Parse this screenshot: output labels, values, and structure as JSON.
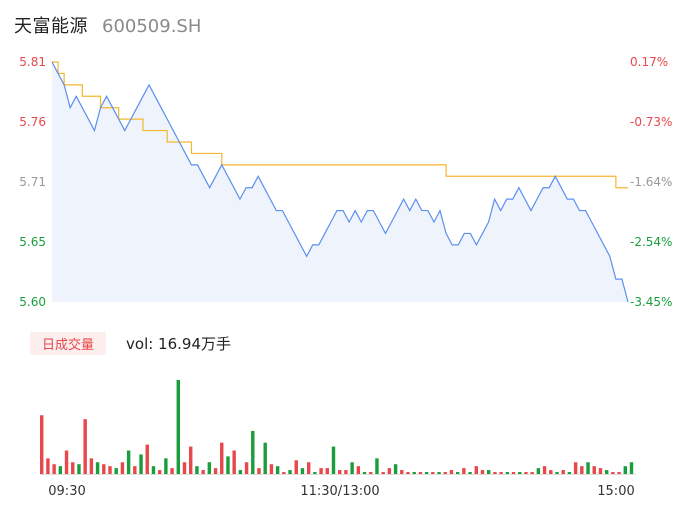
{
  "header": {
    "stock_name": "天富能源",
    "stock_code": "600509.SH"
  },
  "volume_panel": {
    "tab_label": "日成交量",
    "vol_text": "vol: 16.94万手"
  },
  "colors": {
    "price_line": "#5b8ff0",
    "avg_line": "#f5b72e",
    "up": "#e8484b",
    "down": "#1a9e3d",
    "area_fill": "#eef3fc"
  },
  "chart_data": [
    {
      "type": "line",
      "ylim": [
        5.6,
        5.81
      ],
      "y_ticks_left": [
        "5.81",
        "5.76",
        "5.71",
        "5.65",
        "5.60"
      ],
      "y_ticks_right": [
        "0.17%",
        "-0.73%",
        "-1.64%",
        "-2.54%",
        "-3.45%"
      ],
      "x_ticks": [
        "09:30",
        "11:30/13:00",
        "15:00"
      ],
      "series": [
        {
          "values": [
            5.81,
            5.8,
            5.79,
            5.77,
            5.78,
            5.77,
            5.76,
            5.75,
            5.77,
            5.78,
            5.77,
            5.76,
            5.75,
            5.76,
            5.77,
            5.78,
            5.79,
            5.78,
            5.77,
            5.76,
            5.75,
            5.74,
            5.73,
            5.72,
            5.72,
            5.71,
            5.7,
            5.71,
            5.72,
            5.71,
            5.7,
            5.69,
            5.7,
            5.7,
            5.71,
            5.7,
            5.69,
            5.68,
            5.68,
            5.67,
            5.66,
            5.65,
            5.64,
            5.65,
            5.65,
            5.66,
            5.67,
            5.68,
            5.68,
            5.67,
            5.68,
            5.67,
            5.68,
            5.68,
            5.67,
            5.66,
            5.67,
            5.68,
            5.69,
            5.68,
            5.69,
            5.68,
            5.68,
            5.67,
            5.68,
            5.66,
            5.65,
            5.65,
            5.66,
            5.66,
            5.65,
            5.66,
            5.67,
            5.69,
            5.68,
            5.69,
            5.69,
            5.7,
            5.69,
            5.68,
            5.69,
            5.7,
            5.7,
            5.71,
            5.7,
            5.69,
            5.69,
            5.68,
            5.68,
            5.67,
            5.66,
            5.65,
            5.64,
            5.62,
            5.62,
            5.6
          ]
        },
        {
          "values": [
            5.81,
            5.8,
            5.79,
            5.79,
            5.79,
            5.78,
            5.78,
            5.78,
            5.77,
            5.77,
            5.77,
            5.76,
            5.76,
            5.76,
            5.76,
            5.75,
            5.75,
            5.75,
            5.75,
            5.74,
            5.74,
            5.74,
            5.74,
            5.73,
            5.73,
            5.73,
            5.73,
            5.73,
            5.72,
            5.72,
            5.72,
            5.72,
            5.72,
            5.72,
            5.72,
            5.72,
            5.72,
            5.72,
            5.72,
            5.72,
            5.72,
            5.72,
            5.72,
            5.72,
            5.72,
            5.72,
            5.72,
            5.72,
            5.72,
            5.72,
            5.72,
            5.72,
            5.72,
            5.72,
            5.72,
            5.72,
            5.72,
            5.72,
            5.72,
            5.72,
            5.72,
            5.72,
            5.72,
            5.72,
            5.72,
            5.71,
            5.71,
            5.71,
            5.71,
            5.71,
            5.71,
            5.71,
            5.71,
            5.71,
            5.71,
            5.71,
            5.71,
            5.71,
            5.71,
            5.71,
            5.71,
            5.71,
            5.71,
            5.71,
            5.71,
            5.71,
            5.71,
            5.71,
            5.71,
            5.71,
            5.71,
            5.71,
            5.71,
            5.7,
            5.7,
            5.7
          ]
        }
      ]
    },
    {
      "type": "bar",
      "title": "日成交量",
      "values": [
        30,
        8,
        5,
        4,
        12,
        6,
        5,
        28,
        8,
        6,
        5,
        4,
        3,
        6,
        12,
        4,
        10,
        15,
        4,
        2,
        8,
        3,
        48,
        6,
        14,
        4,
        2,
        6,
        3,
        16,
        9,
        12,
        2,
        6,
        22,
        3,
        16,
        5,
        4,
        1,
        2,
        7,
        3,
        6,
        1,
        3,
        3,
        14,
        2,
        2,
        6,
        4,
        1,
        1,
        8,
        1,
        3,
        5,
        2,
        1,
        1,
        1,
        1,
        1,
        1,
        1,
        2,
        1,
        3,
        1,
        4,
        2,
        2,
        1,
        1,
        1,
        1,
        1,
        1,
        1,
        3,
        4,
        2,
        1,
        2,
        1,
        6,
        4,
        6,
        4,
        3,
        2,
        1,
        1,
        4,
        6
      ],
      "up_down": [
        "u",
        "u",
        "u",
        "d",
        "u",
        "u",
        "d",
        "u",
        "u",
        "d",
        "u",
        "u",
        "d",
        "u",
        "d",
        "u",
        "d",
        "u",
        "d",
        "u",
        "d",
        "u",
        "d",
        "u",
        "u",
        "d",
        "u",
        "d",
        "u",
        "u",
        "d",
        "u",
        "d",
        "u",
        "d",
        "u",
        "d",
        "u",
        "d",
        "u",
        "d",
        "u",
        "d",
        "u",
        "d",
        "u",
        "u",
        "d",
        "u",
        "u",
        "d",
        "u",
        "d",
        "u",
        "d",
        "u",
        "u",
        "d",
        "u",
        "u",
        "d",
        "u",
        "d",
        "u",
        "d",
        "u",
        "u",
        "d",
        "u",
        "d",
        "u",
        "u",
        "d",
        "u",
        "u",
        "d",
        "u",
        "d",
        "u",
        "u",
        "d",
        "u",
        "u",
        "d",
        "u",
        "d",
        "u",
        "u",
        "d",
        "u",
        "u",
        "d",
        "u",
        "u",
        "d",
        "d"
      ]
    }
  ]
}
